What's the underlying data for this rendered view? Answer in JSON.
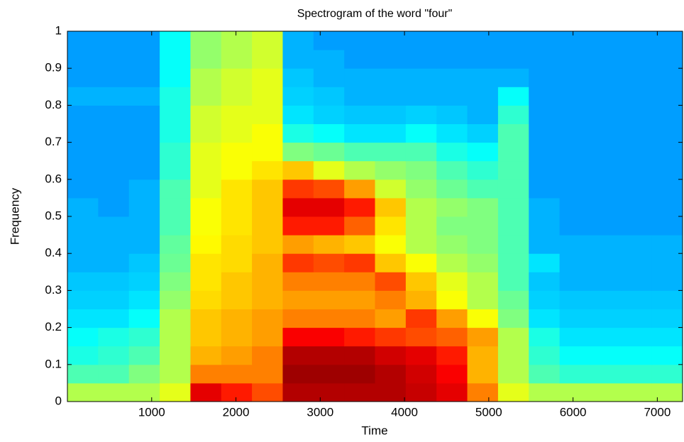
{
  "chart_data": {
    "type": "heatmap",
    "title": "Spectrogram of the word \"four\"",
    "x_label": "Time",
    "y_label": "Frequency",
    "colormap": "jet",
    "zlim": [
      0,
      1
    ],
    "xlim": [
      0,
      7300
    ],
    "xticks": [
      1000,
      2000,
      3000,
      4000,
      5000,
      6000,
      7000
    ],
    "ylim": [
      0,
      1
    ],
    "yticks": [
      0,
      0.1,
      0.2,
      0.3,
      0.4,
      0.5,
      0.6,
      0.7,
      0.8,
      0.9,
      1
    ],
    "x": [
      182.5,
      547.5,
      912.5,
      1277.5,
      1642.5,
      2007.5,
      2372.5,
      2737.5,
      3102.5,
      3467.5,
      3832.5,
      4197.5,
      4562.5,
      4927.5,
      5292.5,
      5657.5,
      6022.5,
      6387.5,
      6752.5,
      7117.5
    ],
    "y": [
      0.025,
      0.075,
      0.125,
      0.175,
      0.225,
      0.275,
      0.325,
      0.375,
      0.425,
      0.475,
      0.525,
      0.575,
      0.625,
      0.675,
      0.725,
      0.775,
      0.825,
      0.875,
      0.925,
      0.975
    ],
    "z": [
      [
        0.55,
        0.55,
        0.55,
        0.6,
        0.9,
        0.85,
        0.8,
        0.95,
        0.95,
        0.95,
        0.95,
        0.93,
        0.9,
        0.75,
        0.6,
        0.55,
        0.55,
        0.55,
        0.55,
        0.55
      ],
      [
        0.45,
        0.45,
        0.5,
        0.55,
        0.75,
        0.75,
        0.75,
        0.97,
        0.97,
        0.97,
        0.95,
        0.92,
        0.88,
        0.7,
        0.55,
        0.45,
        0.42,
        0.42,
        0.42,
        0.42
      ],
      [
        0.4,
        0.42,
        0.45,
        0.55,
        0.7,
        0.72,
        0.75,
        0.95,
        0.95,
        0.95,
        0.92,
        0.9,
        0.85,
        0.7,
        0.55,
        0.42,
        0.38,
        0.38,
        0.38,
        0.38
      ],
      [
        0.38,
        0.4,
        0.42,
        0.55,
        0.68,
        0.7,
        0.72,
        0.88,
        0.88,
        0.85,
        0.82,
        0.8,
        0.78,
        0.72,
        0.55,
        0.4,
        0.35,
        0.35,
        0.35,
        0.35
      ],
      [
        0.35,
        0.35,
        0.38,
        0.55,
        0.68,
        0.7,
        0.72,
        0.75,
        0.75,
        0.75,
        0.72,
        0.82,
        0.72,
        0.62,
        0.5,
        0.35,
        0.33,
        0.33,
        0.33,
        0.33
      ],
      [
        0.33,
        0.33,
        0.35,
        0.52,
        0.66,
        0.68,
        0.7,
        0.72,
        0.72,
        0.72,
        0.75,
        0.7,
        0.62,
        0.55,
        0.48,
        0.33,
        0.32,
        0.32,
        0.32,
        0.32
      ],
      [
        0.32,
        0.32,
        0.33,
        0.5,
        0.65,
        0.68,
        0.7,
        0.75,
        0.75,
        0.75,
        0.8,
        0.68,
        0.6,
        0.55,
        0.45,
        0.32,
        0.3,
        0.3,
        0.3,
        0.3
      ],
      [
        0.3,
        0.3,
        0.32,
        0.48,
        0.65,
        0.66,
        0.7,
        0.82,
        0.8,
        0.82,
        0.68,
        0.62,
        0.55,
        0.52,
        0.45,
        0.35,
        0.3,
        0.3,
        0.3,
        0.3
      ],
      [
        0.3,
        0.3,
        0.3,
        0.47,
        0.63,
        0.66,
        0.68,
        0.72,
        0.7,
        0.68,
        0.62,
        0.55,
        0.52,
        0.5,
        0.45,
        0.3,
        0.3,
        0.3,
        0.3,
        0.3
      ],
      [
        0.3,
        0.3,
        0.3,
        0.45,
        0.62,
        0.65,
        0.68,
        0.85,
        0.85,
        0.78,
        0.65,
        0.55,
        0.5,
        0.5,
        0.45,
        0.3,
        0.28,
        0.28,
        0.28,
        0.28
      ],
      [
        0.3,
        0.28,
        0.3,
        0.45,
        0.62,
        0.65,
        0.68,
        0.9,
        0.9,
        0.85,
        0.68,
        0.55,
        0.52,
        0.5,
        0.45,
        0.3,
        0.28,
        0.28,
        0.28,
        0.28
      ],
      [
        0.28,
        0.28,
        0.3,
        0.45,
        0.6,
        0.65,
        0.68,
        0.82,
        0.8,
        0.72,
        0.58,
        0.52,
        0.48,
        0.45,
        0.45,
        0.28,
        0.28,
        0.28,
        0.28,
        0.28
      ],
      [
        0.28,
        0.28,
        0.28,
        0.42,
        0.6,
        0.62,
        0.65,
        0.68,
        0.6,
        0.55,
        0.52,
        0.5,
        0.45,
        0.42,
        0.45,
        0.28,
        0.28,
        0.28,
        0.28,
        0.28
      ],
      [
        0.28,
        0.28,
        0.28,
        0.42,
        0.6,
        0.62,
        0.62,
        0.5,
        0.48,
        0.45,
        0.45,
        0.45,
        0.4,
        0.38,
        0.45,
        0.28,
        0.28,
        0.28,
        0.28,
        0.28
      ],
      [
        0.28,
        0.28,
        0.28,
        0.4,
        0.58,
        0.6,
        0.62,
        0.4,
        0.38,
        0.35,
        0.35,
        0.38,
        0.35,
        0.33,
        0.45,
        0.28,
        0.28,
        0.28,
        0.28,
        0.28
      ],
      [
        0.28,
        0.28,
        0.28,
        0.4,
        0.58,
        0.6,
        0.6,
        0.35,
        0.33,
        0.32,
        0.32,
        0.33,
        0.32,
        0.3,
        0.42,
        0.28,
        0.28,
        0.28,
        0.28,
        0.28
      ],
      [
        0.3,
        0.3,
        0.3,
        0.4,
        0.55,
        0.58,
        0.6,
        0.33,
        0.32,
        0.3,
        0.3,
        0.3,
        0.3,
        0.3,
        0.38,
        0.28,
        0.28,
        0.28,
        0.28,
        0.28
      ],
      [
        0.28,
        0.28,
        0.28,
        0.38,
        0.55,
        0.58,
        0.6,
        0.32,
        0.3,
        0.3,
        0.3,
        0.3,
        0.3,
        0.3,
        0.3,
        0.28,
        0.28,
        0.28,
        0.28,
        0.28
      ],
      [
        0.28,
        0.28,
        0.28,
        0.38,
        0.52,
        0.55,
        0.58,
        0.3,
        0.3,
        0.28,
        0.28,
        0.28,
        0.28,
        0.28,
        0.28,
        0.28,
        0.28,
        0.28,
        0.28,
        0.28
      ],
      [
        0.28,
        0.28,
        0.28,
        0.38,
        0.52,
        0.55,
        0.58,
        0.3,
        0.28,
        0.28,
        0.28,
        0.28,
        0.28,
        0.28,
        0.28,
        0.28,
        0.28,
        0.28,
        0.28,
        0.28
      ]
    ]
  }
}
